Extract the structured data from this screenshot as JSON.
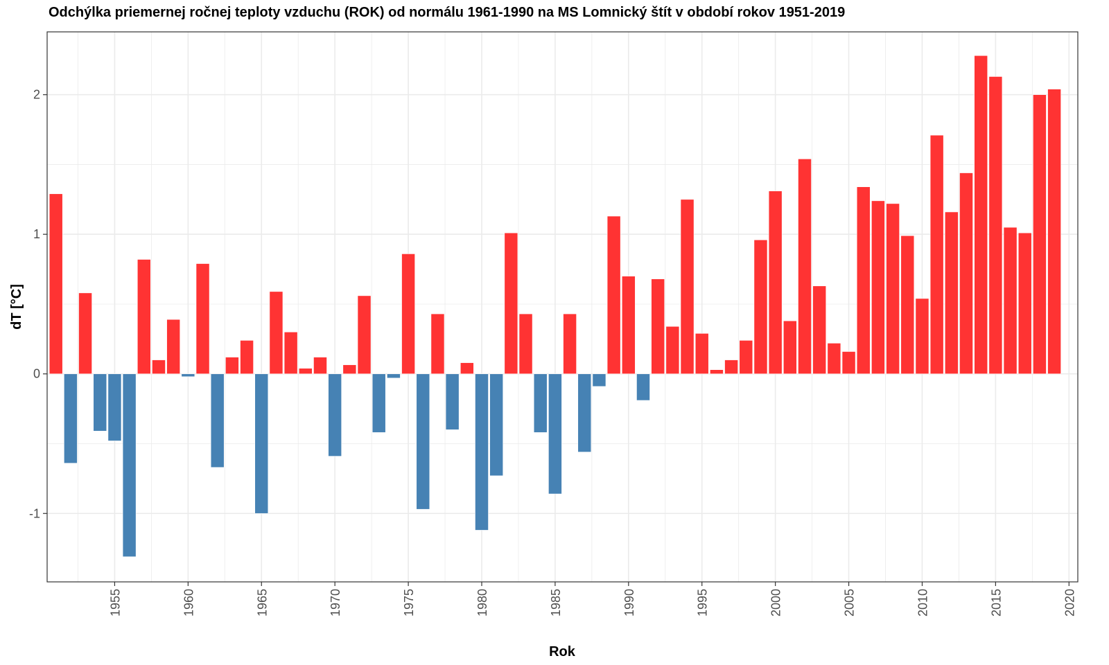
{
  "chart_data": {
    "type": "bar",
    "title": "Odchýlka priemernej ročnej teploty vzduchu (ROK) od normálu 1961-1990 na MS Lomnický štít v období rokov 1951-2019",
    "xlabel": "Rok",
    "ylabel": "dT [°C]",
    "x": [
      1951,
      1952,
      1953,
      1954,
      1955,
      1956,
      1957,
      1958,
      1959,
      1960,
      1961,
      1962,
      1963,
      1964,
      1965,
      1966,
      1967,
      1968,
      1969,
      1970,
      1971,
      1972,
      1973,
      1974,
      1975,
      1976,
      1977,
      1978,
      1979,
      1980,
      1981,
      1982,
      1983,
      1984,
      1985,
      1986,
      1987,
      1988,
      1989,
      1990,
      1991,
      1992,
      1993,
      1994,
      1995,
      1996,
      1997,
      1998,
      1999,
      2000,
      2001,
      2002,
      2003,
      2004,
      2005,
      2006,
      2007,
      2008,
      2009,
      2010,
      2011,
      2012,
      2013,
      2014,
      2015,
      2016,
      2017,
      2018,
      2019
    ],
    "values": [
      1.29,
      -0.64,
      0.58,
      -0.41,
      -0.48,
      -1.31,
      0.82,
      0.1,
      0.39,
      -0.02,
      0.79,
      -0.67,
      0.12,
      0.24,
      -1.0,
      0.59,
      0.3,
      0.04,
      0.12,
      -0.59,
      0.065,
      0.56,
      -0.42,
      -0.03,
      0.86,
      -0.97,
      0.43,
      -0.4,
      0.08,
      -1.12,
      -0.73,
      1.01,
      0.43,
      -0.42,
      -0.86,
      0.43,
      -0.56,
      -0.09,
      1.13,
      0.7,
      -0.19,
      0.68,
      0.34,
      1.25,
      0.29,
      0.03,
      0.1,
      0.24,
      0.96,
      1.31,
      0.38,
      1.54,
      0.63,
      0.22,
      0.16,
      1.34,
      1.24,
      1.22,
      0.99,
      0.54,
      1.71,
      1.16,
      1.44,
      2.28,
      2.13,
      1.05,
      1.01,
      2.0,
      2.04
    ],
    "positive_color": "#ff3333",
    "negative_color": "#4682b4",
    "x_ticks": [
      1955,
      1960,
      1965,
      1970,
      1975,
      1980,
      1985,
      1990,
      1995,
      2000,
      2005,
      2010,
      2015,
      2020
    ],
    "y_ticks": [
      -1,
      0,
      1,
      2
    ],
    "xlim": [
      1950.4,
      2020.6
    ],
    "ylim": [
      -1.49,
      2.45
    ],
    "grid": true,
    "legend": "none"
  }
}
